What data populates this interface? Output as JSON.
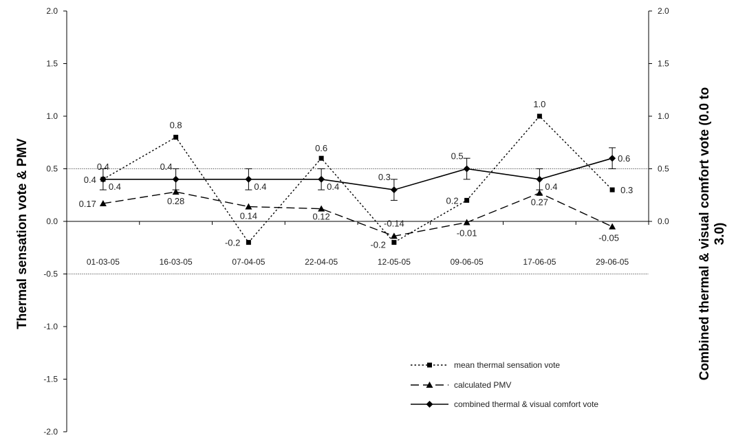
{
  "chart_data": {
    "type": "line",
    "categories": [
      "01-03-05",
      "16-03-05",
      "07-04-05",
      "22-04-05",
      "12-05-05",
      "09-06-05",
      "17-06-05",
      "29-06-05"
    ],
    "y_axis_left": {
      "label": "Thermal sensation vote & PMV",
      "ylim": [
        -2.0,
        2.0
      ],
      "ticks": [
        "2.0",
        "1.5",
        "1.0",
        "0.5",
        "0.0",
        "-0.5",
        "-1.0",
        "-1.5",
        "-2.0"
      ]
    },
    "y_axis_right": {
      "label_line1": "Combined thermal & visual comfort vote (0.0 to",
      "label_line2": "3.0)",
      "ylim": [
        -2.0,
        2.0
      ],
      "ticks": [
        "2.0",
        "1.5",
        "1.0",
        "0.5",
        "0.0"
      ]
    },
    "reference_lines": [
      0.5,
      -0.5
    ],
    "series": [
      {
        "name": "mean thermal sensation vote",
        "style": "dotted",
        "marker": "square",
        "color": "#000000",
        "values": [
          0.4,
          0.8,
          -0.2,
          0.6,
          -0.2,
          0.2,
          1.0,
          0.3
        ],
        "labels": [
          "0.4",
          "0.8",
          "-0.2",
          "0.6",
          "-0.2",
          "0.2",
          "1.0",
          "0.3"
        ]
      },
      {
        "name": "calculated PMV",
        "style": "dashed",
        "marker": "triangle",
        "color": "#000000",
        "values": [
          0.17,
          0.28,
          0.14,
          0.12,
          -0.14,
          -0.01,
          0.27,
          -0.05
        ],
        "labels": [
          "0.17",
          "0.28",
          "0.14",
          "0.12",
          "-0.14",
          "-0.01",
          "0.27",
          "-0.05"
        ]
      },
      {
        "name": "combined thermal & visual comfort vote",
        "style": "solid",
        "marker": "diamond",
        "color": "#000000",
        "values": [
          0.4,
          0.4,
          0.4,
          0.4,
          0.3,
          0.5,
          0.4,
          0.6
        ],
        "error": [
          0.1,
          0.1,
          0.1,
          0.1,
          0.1,
          0.1,
          0.1,
          0.1
        ],
        "labels_above": [
          "0.4",
          "0.4",
          "",
          "",
          "0.3",
          "0.5",
          "",
          ""
        ],
        "labels_right": [
          "0.4",
          "",
          "0.4",
          "0.4",
          "",
          "",
          "0.4",
          "0.6"
        ]
      }
    ],
    "legend_position": "bottom-right"
  }
}
